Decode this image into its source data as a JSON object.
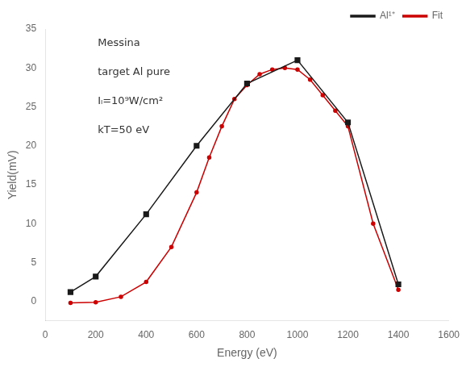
{
  "chart_data": {
    "type": "line",
    "xlabel": "Energy (eV)",
    "ylabel": "Yield(mV)",
    "series": [
      {
        "name": "Al¹⁺",
        "color": "#1a1a1a",
        "marker": "square",
        "x": [
          100,
          200,
          400,
          600,
          800,
          1000,
          1200,
          1400
        ],
        "values": [
          1.2,
          3.2,
          11.2,
          20.0,
          28.0,
          31.0,
          23.0,
          2.2
        ]
      },
      {
        "name": "Fit",
        "color": "#cc0000",
        "marker": "point",
        "x": [
          100,
          200,
          300,
          400,
          500,
          600,
          650,
          700,
          750,
          800,
          850,
          900,
          950,
          1000,
          1050,
          1100,
          1150,
          1200,
          1300,
          1400
        ],
        "values": [
          -0.2,
          -0.1,
          0.6,
          2.5,
          7.0,
          14.0,
          18.5,
          22.5,
          26.0,
          27.8,
          29.2,
          29.8,
          30.0,
          29.8,
          28.5,
          26.5,
          24.5,
          22.5,
          10.0,
          1.5
        ]
      }
    ],
    "xlim": [
      0,
      1600
    ],
    "xticks": [
      0,
      200,
      400,
      600,
      800,
      1000,
      1200,
      1400,
      1600
    ],
    "ylim": [
      -2.5,
      35
    ],
    "yticks": [
      0,
      5,
      10,
      15,
      20,
      25,
      30,
      35
    ],
    "annotations": [
      "Messina",
      "target Al pure",
      "Iₗ=10⁹W/cm²",
      "kT=50 eV"
    ],
    "legend": "upper right",
    "grid": false
  }
}
